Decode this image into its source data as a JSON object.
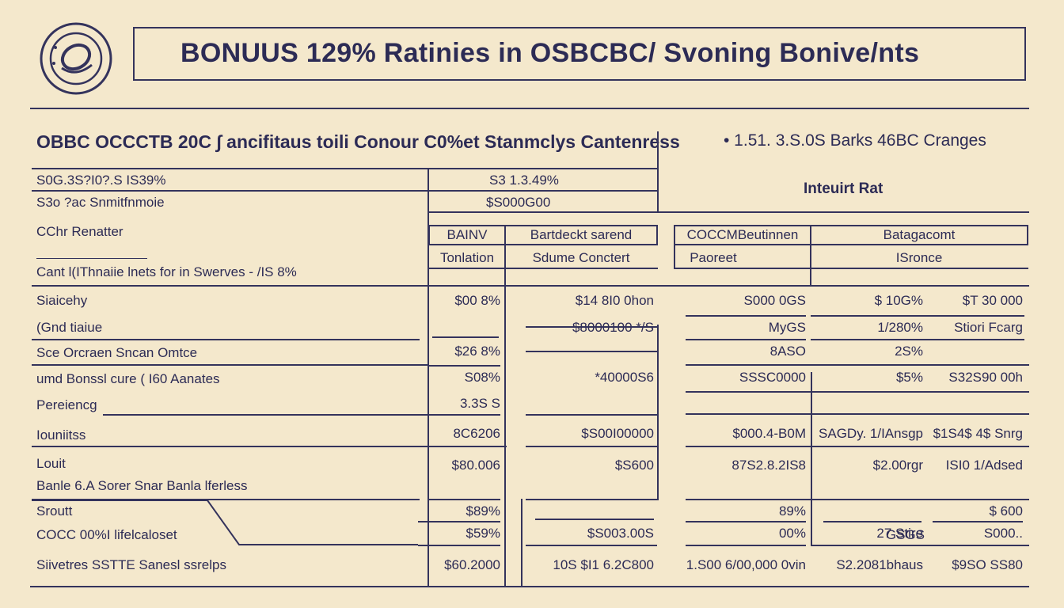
{
  "header": {
    "title": "BONUUS 129% Ratinies in OSBCBC/ Svoning Bonive/nts"
  },
  "section": {
    "heading": "OBBC OCCCTB 20C ∫ ancifitaus toili Conour C0%et Stanmclys Cantenress",
    "right_heading": "• 1.51. 3.S.0S Barks 46BC Cranges",
    "interest_label": "Inteuirt Rat"
  },
  "top_rows": [
    {
      "label": "S0G.3S?I0?.S IS39%",
      "value": "S3 1.3.49%"
    },
    {
      "label": "S3o  ?ac Snmitfnmoie",
      "value": "$S000G00"
    }
  ],
  "left_labels": {
    "cchr_renatter": "CChr Renatter",
    "cant_line": "Cant  l(IThnaiie lnets for in Swerves  - /IS 8%",
    "rows": [
      "Siaicehy",
      "(Gnd tiaiue",
      "Sce Orcraen Sncan Omtce",
      "umd Bonssl cure ( I60 Aanates",
      "Pereiencg",
      "Iouniitss",
      "Louit",
      "Banle 6.A Sorer Snar Banla lferless",
      "Sroutt",
      "COCC 00%I lifelcaloset",
      "Siivetres  SSTTE Sanesl ssrelps"
    ]
  },
  "table_headers": {
    "col1": "BAINV",
    "col2": "Bartdeckt sarend",
    "col3": "COCCMBeutinnen",
    "col4": "Batagacomt",
    "sub1": "Tonlation",
    "sub2": "Sdume Conctert",
    "sub3": "Paoreet",
    "sub4": "ISronce"
  },
  "grid": {
    "c1": [
      "$00 8%",
      "",
      "$26 8%",
      "S08%",
      "3.3S S",
      "8C6206",
      "$80.006",
      "",
      "$89%",
      "$59%",
      "$60.2000"
    ],
    "c2": [
      "$14 8I0 0hon",
      "$8000100 */S",
      "",
      "*40000S6",
      "",
      "$S00I00000",
      "$S600",
      "",
      "",
      "$S003.00S",
      "10S $I1 6.2C800"
    ],
    "c3": [
      "S000 0GS",
      "MyGS",
      "8ASO",
      "SSSC0000",
      "",
      "$000.4-B0M",
      "87S2.8.2IS8",
      "",
      "89%",
      "00%",
      "1.S00 6/00,000 0vin"
    ],
    "c4": [
      "$ 10G%",
      "1/280%",
      "2S%",
      "$5%",
      "",
      "SAGDy. 1/IAnsgp",
      "$2.00rgr",
      "",
      "",
      "27 Stire",
      "S2.2081bhaus"
    ],
    "c5": [
      "$T 30 000",
      "Stiori Fcarg",
      "",
      "S32S90 00h",
      "",
      "$1S4$ 4$ Snrg",
      "ISI0 1/Adsed",
      "",
      "$ 600",
      "S000..",
      "$9SO SS80"
    ],
    "c4b": [
      "",
      "",
      "",
      "",
      "",
      "",
      "",
      "",
      "",
      "GSGS",
      ""
    ]
  }
}
